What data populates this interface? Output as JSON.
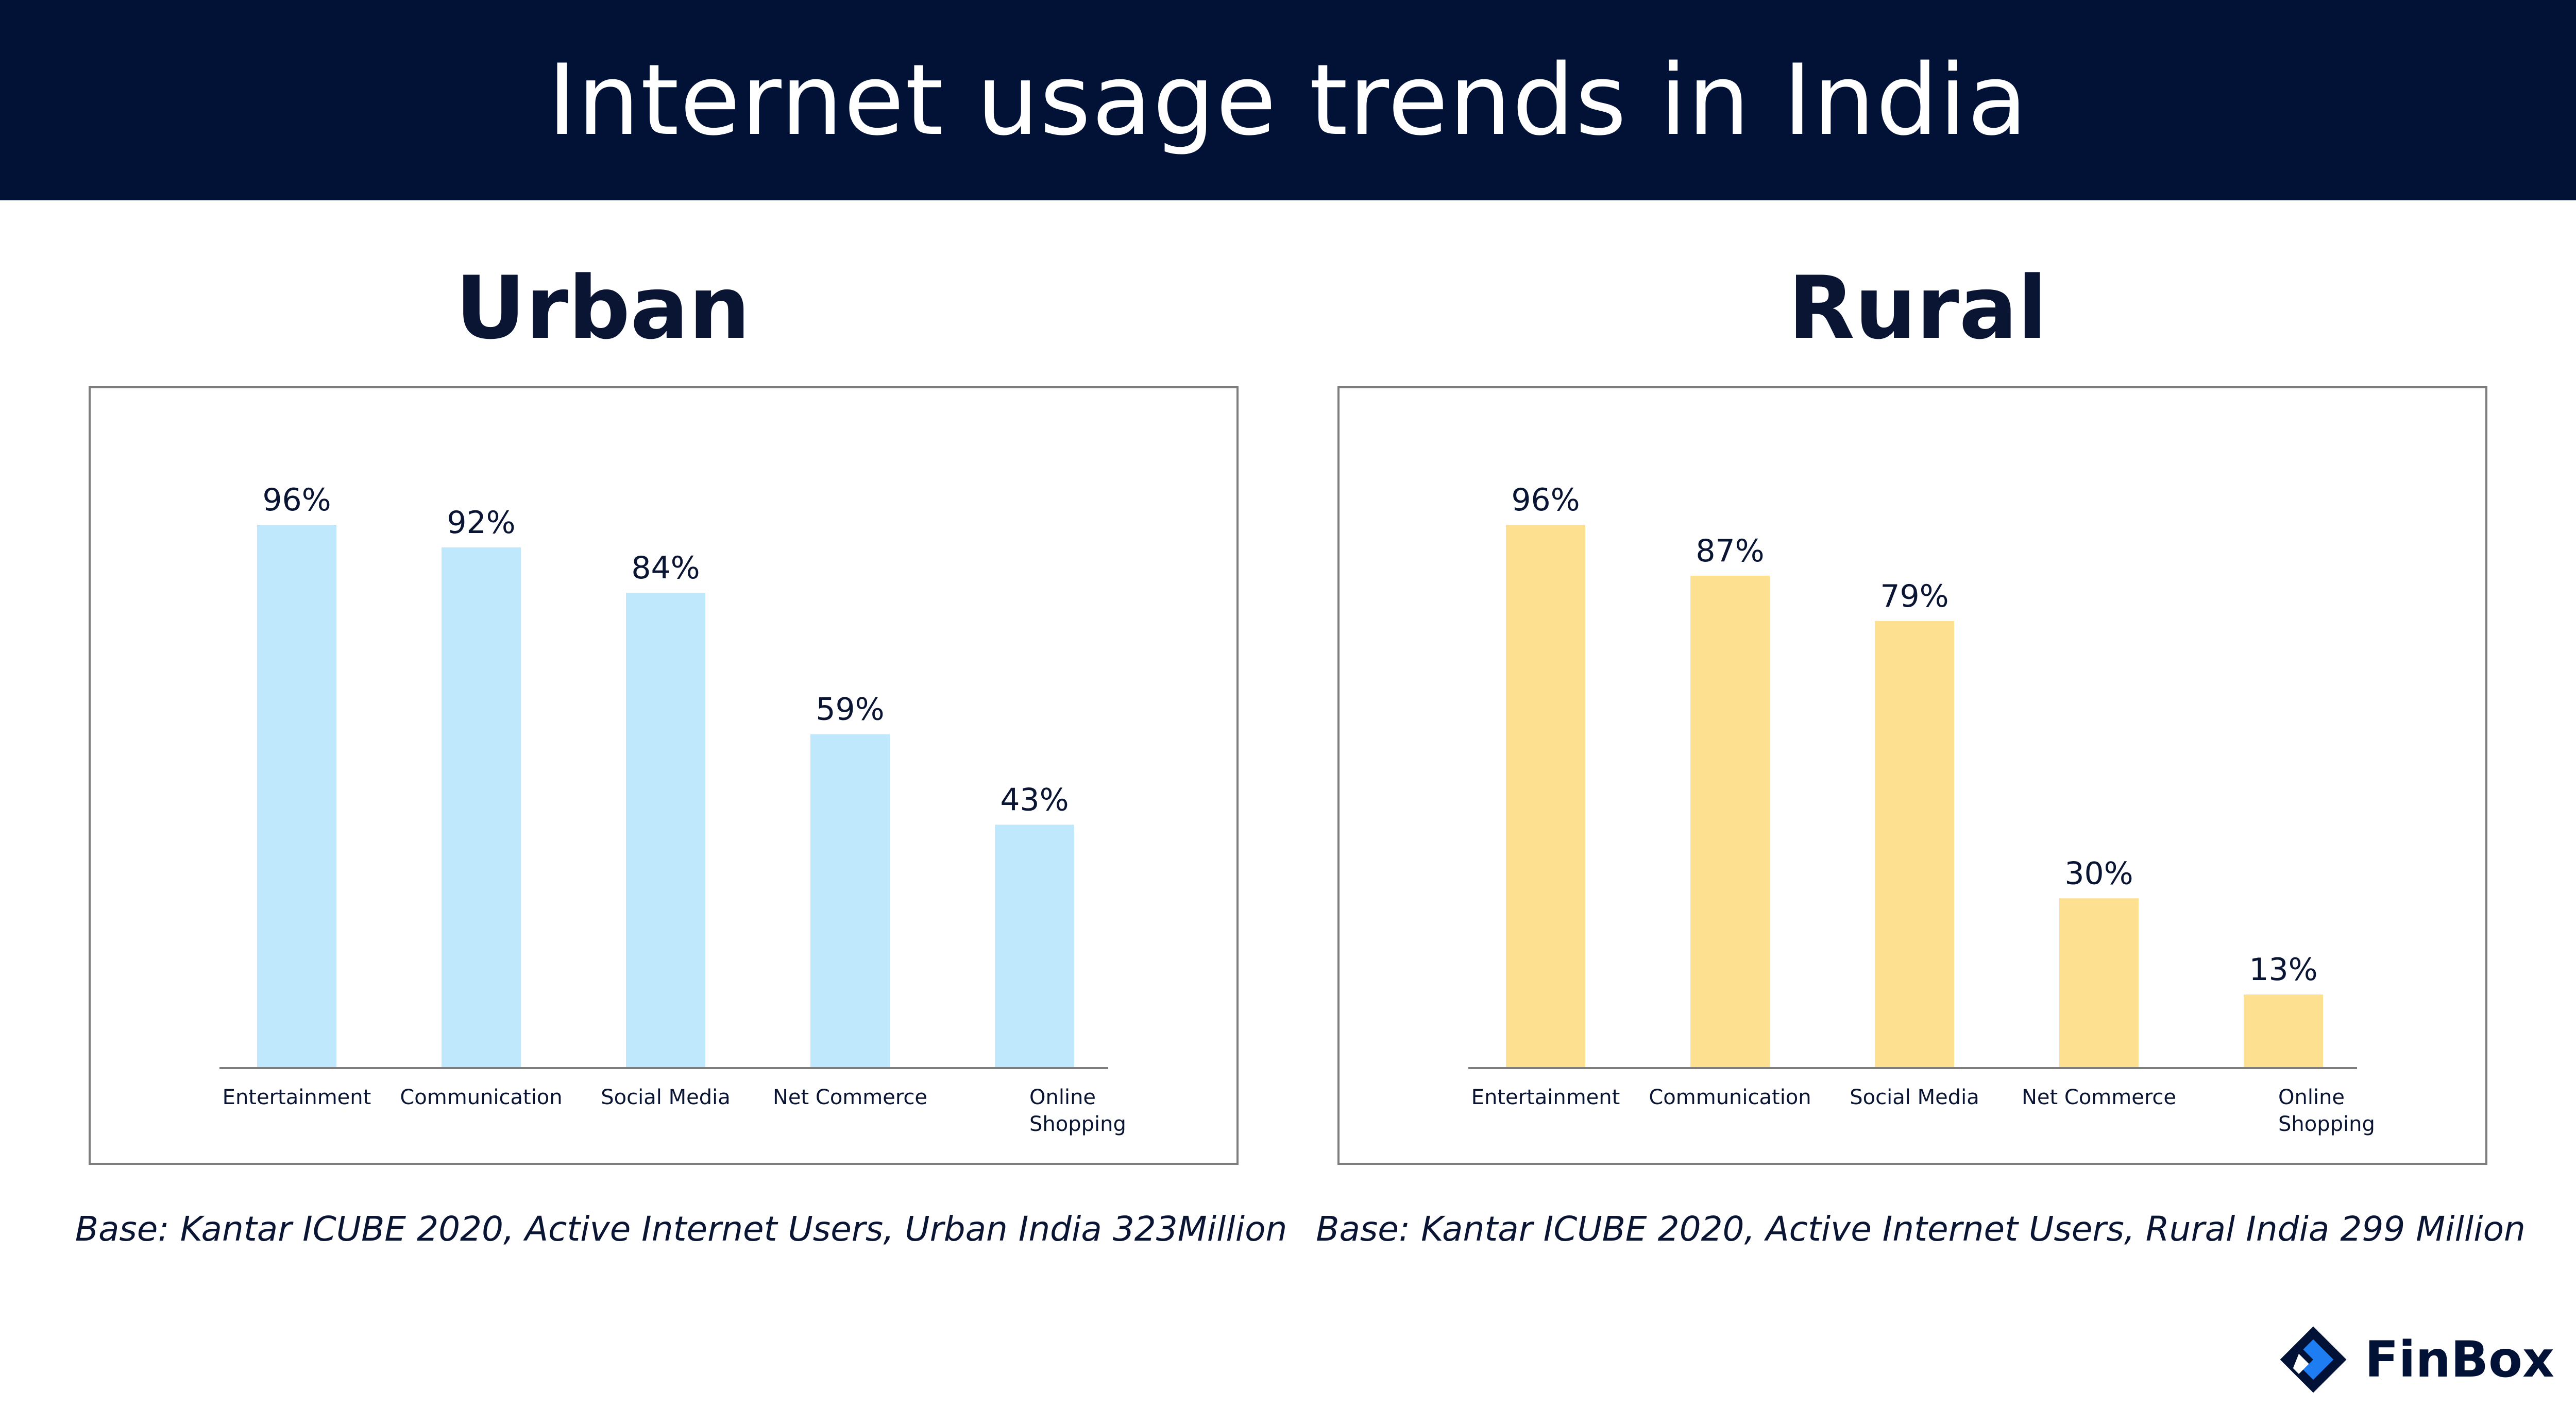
{
  "header": {
    "title": "Internet usage trends in India"
  },
  "panels": [
    {
      "title": "Urban",
      "note": "Base: Kantar ICUBE 2020, Active Internet Users, Urban India 323Million"
    },
    {
      "title": "Rural",
      "note": "Base: Kantar ICUBE 2020, Active Internet Users, Rural India 299 Million"
    }
  ],
  "logo": {
    "text": "FinBox"
  },
  "chart_data": [
    {
      "type": "bar",
      "categories": [
        "Entertainment",
        "Communication",
        "Social Media",
        "Net Commerce",
        "Online Shopping"
      ],
      "values": [
        96,
        92,
        84,
        59,
        43
      ],
      "data_labels": [
        "96%",
        "92%",
        "84%",
        "59%",
        "43%"
      ],
      "ylim": [
        0,
        100
      ],
      "color": "#bfe8fc",
      "grid": false
    },
    {
      "type": "bar",
      "categories": [
        "Entertainment",
        "Communication",
        "Social Media",
        "Net Commerce",
        "Online Shopping"
      ],
      "values": [
        96,
        87,
        79,
        30,
        13
      ],
      "data_labels": [
        "96%",
        "87%",
        "79%",
        "30%",
        "13%"
      ],
      "ylim": [
        0,
        100
      ],
      "color": "#fee190",
      "grid": false
    }
  ],
  "colors": {
    "header_bg": "#021236",
    "logo_mark": "#1e7df0",
    "logo_dark": "#021236"
  }
}
